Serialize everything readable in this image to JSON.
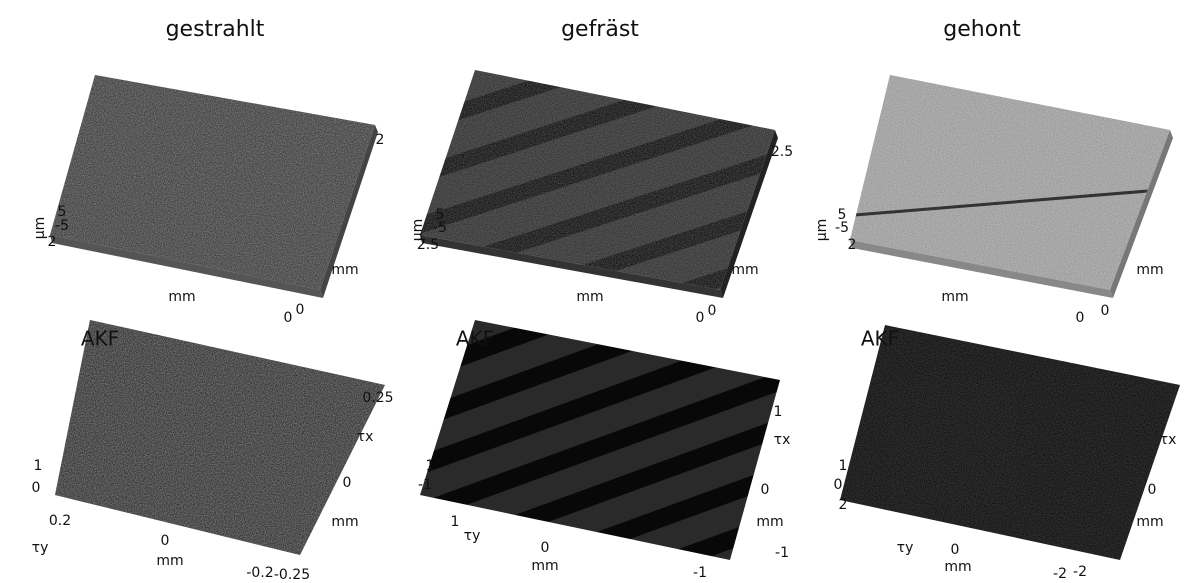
{
  "columns": [
    {
      "title": "gestrahlt",
      "top": {
        "labels": [
          "2",
          "µm",
          "5",
          "-5",
          "2",
          "mm",
          "mm",
          "0",
          "0"
        ]
      },
      "bottom": {
        "labels": [
          "AKF",
          "0.25",
          "τx",
          "1",
          "0",
          "0",
          "0.2",
          "mm",
          "τy",
          "0",
          "mm",
          "-0.2",
          "-0.25"
        ]
      }
    },
    {
      "title": "gefräst",
      "top": {
        "labels": [
          "2.5",
          "µm",
          "5",
          "-5",
          "2.5",
          "mm",
          "mm",
          "0",
          "0"
        ]
      },
      "bottom": {
        "labels": [
          "AKF",
          "1",
          "τx",
          "1",
          "-1",
          "0",
          "mm",
          "1",
          "τy",
          "0",
          "mm",
          "-1",
          "-1"
        ]
      }
    },
    {
      "title": "gehont",
      "top": {
        "labels": [
          "µm",
          "5",
          "-5",
          "2",
          "mm",
          "mm",
          "0",
          "0"
        ]
      },
      "bottom": {
        "labels": [
          "AKF",
          "0",
          "τx",
          "1",
          "0",
          "2",
          "mm",
          "τy",
          "0",
          "mm",
          "-2",
          "-2"
        ]
      }
    }
  ]
}
